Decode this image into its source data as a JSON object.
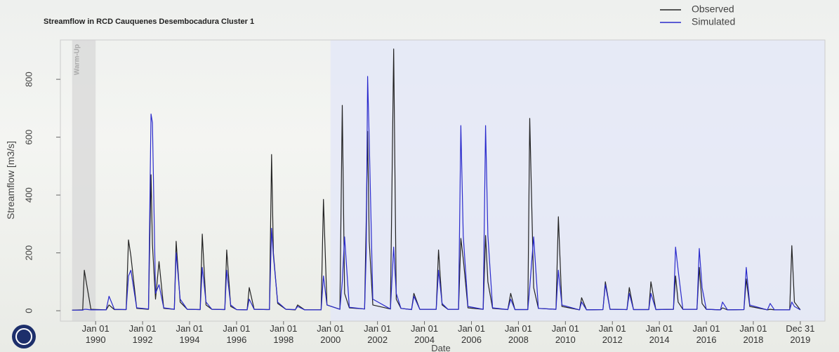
{
  "chart_data": {
    "type": "line",
    "title": "Streamflow in RCD Cauquenes Desembocadura Cluster 1",
    "x_label": "Date",
    "y_label": "Streamflow [m3/s]",
    "legend": "top-right",
    "xlim": [
      1988.5,
      2021.05
    ],
    "ylim": [
      -36,
      936
    ],
    "yticks": [
      0,
      200,
      400,
      600,
      800
    ],
    "xticks": [
      {
        "value": 1990,
        "label": "Jan 01 1990"
      },
      {
        "value": 1992,
        "label": "Jan 01 1992"
      },
      {
        "value": 1994,
        "label": "Jan 01 1994"
      },
      {
        "value": 1996,
        "label": "Jan 01 1996"
      },
      {
        "value": 1998,
        "label": "Jan 01 1998"
      },
      {
        "value": 2000,
        "label": "Jan 01 2000"
      },
      {
        "value": 2002,
        "label": "Jan 01 2002"
      },
      {
        "value": 2004,
        "label": "Jan 01 2004"
      },
      {
        "value": 2006,
        "label": "Jan 01 2006"
      },
      {
        "value": 2008,
        "label": "Jan 01 2008"
      },
      {
        "value": 2010,
        "label": "Jan 01 2010"
      },
      {
        "value": 2012,
        "label": "Jan 01 2012"
      },
      {
        "value": 2014,
        "label": "Jan 01 2014"
      },
      {
        "value": 2016,
        "label": "Jan 01 2016"
      },
      {
        "value": 2018,
        "label": "Jan 01 2018"
      },
      {
        "value": 2020,
        "label": "Dec 31 2019"
      }
    ],
    "shaded_periods": [
      {
        "label": "Warm-Up",
        "range": [
          1989.0,
          1990.0
        ],
        "color": "#d9d9d9"
      },
      {
        "range": [
          2000.0,
          2021.05
        ],
        "color": "#e3e7f7"
      }
    ],
    "x": [
      1989.0,
      1989.45,
      1989.52,
      1989.6,
      1989.8,
      1990.45,
      1990.57,
      1990.8,
      1991.3,
      1991.4,
      1991.5,
      1991.75,
      1992.25,
      1992.36,
      1992.42,
      1992.55,
      1992.7,
      1992.9,
      1993.35,
      1993.43,
      1993.6,
      1993.9,
      1994.45,
      1994.54,
      1994.7,
      1994.95,
      1995.5,
      1995.58,
      1995.75,
      1996.0,
      1996.45,
      1996.54,
      1996.75,
      1997.4,
      1997.49,
      1997.57,
      1997.75,
      1998.1,
      1998.5,
      1998.6,
      1998.9,
      1999.6,
      1999.7,
      1999.85,
      2000.4,
      2000.5,
      2000.6,
      2000.8,
      2001.45,
      2001.52,
      2001.58,
      2001.65,
      2001.8,
      2002.55,
      2002.69,
      2002.8,
      2003.0,
      2003.45,
      2003.55,
      2003.8,
      2004.5,
      2004.6,
      2004.75,
      2005.0,
      2005.45,
      2005.55,
      2005.65,
      2005.85,
      2006.5,
      2006.6,
      2006.7,
      2006.9,
      2007.55,
      2007.67,
      2007.85,
      2008.4,
      2008.48,
      2008.65,
      2008.85,
      2009.6,
      2009.7,
      2009.85,
      2010.6,
      2010.69,
      2010.9,
      2011.6,
      2011.7,
      2011.9,
      2012.62,
      2012.72,
      2012.9,
      2013.55,
      2013.64,
      2013.85,
      2014.6,
      2014.69,
      2014.8,
      2015.0,
      2015.6,
      2015.7,
      2015.82,
      2016.0,
      2016.6,
      2016.69,
      2016.9,
      2017.6,
      2017.7,
      2017.85,
      2018.6,
      2018.72,
      2018.9,
      2019.55,
      2019.64,
      2019.75,
      2020.0
    ],
    "series": [
      {
        "name": "Observed",
        "color": "#222222",
        "values": [
          2,
          3,
          140,
          100,
          5,
          3,
          20,
          4,
          4,
          245,
          190,
          8,
          5,
          470,
          230,
          40,
          170,
          8,
          5,
          240,
          30,
          5,
          4,
          265,
          20,
          5,
          4,
          210,
          15,
          4,
          3,
          80,
          5,
          4,
          540,
          200,
          25,
          5,
          3,
          20,
          3,
          3,
          385,
          20,
          5,
          710,
          60,
          10,
          6,
          310,
          620,
          240,
          20,
          6,
          905,
          40,
          8,
          4,
          60,
          5,
          5,
          210,
          20,
          5,
          5,
          250,
          180,
          10,
          5,
          260,
          100,
          8,
          4,
          60,
          4,
          4,
          665,
          80,
          8,
          5,
          325,
          15,
          3,
          45,
          3,
          4,
          100,
          5,
          4,
          80,
          4,
          4,
          100,
          4,
          5,
          120,
          30,
          5,
          5,
          150,
          25,
          5,
          3,
          10,
          3,
          4,
          110,
          15,
          3,
          5,
          3,
          3,
          225,
          30,
          3
        ]
      },
      {
        "name": "Simulated",
        "color": "#2a2acc",
        "values": [
          2,
          2,
          5,
          5,
          3,
          3,
          50,
          5,
          4,
          120,
          140,
          10,
          6,
          680,
          650,
          60,
          90,
          10,
          5,
          200,
          40,
          5,
          4,
          150,
          30,
          5,
          4,
          140,
          20,
          4,
          3,
          40,
          5,
          4,
          285,
          190,
          30,
          5,
          4,
          15,
          3,
          3,
          120,
          20,
          5,
          100,
          255,
          12,
          6,
          200,
          810,
          590,
          40,
          6,
          220,
          60,
          8,
          4,
          50,
          5,
          5,
          140,
          25,
          5,
          5,
          640,
          260,
          15,
          5,
          640,
          260,
          10,
          4,
          40,
          4,
          4,
          80,
          255,
          8,
          5,
          140,
          20,
          3,
          30,
          3,
          4,
          90,
          5,
          4,
          60,
          4,
          4,
          60,
          4,
          5,
          220,
          140,
          5,
          5,
          215,
          80,
          5,
          3,
          30,
          3,
          4,
          150,
          20,
          3,
          25,
          3,
          3,
          30,
          15,
          3
        ]
      }
    ]
  }
}
